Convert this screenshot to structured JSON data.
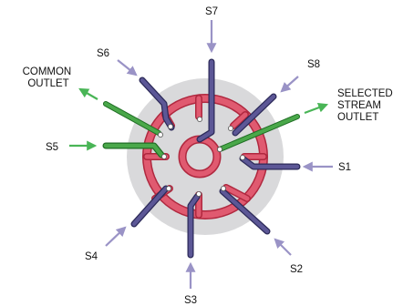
{
  "labels": {
    "s1": "S1",
    "s2": "S2",
    "s3": "S3",
    "s4": "S4",
    "s5": "S5",
    "s6": "S6",
    "s7": "S7",
    "s8": "S8",
    "common_outlet": [
      "COMMON",
      "OUTLET"
    ],
    "selected_outlet": [
      "SELECTED",
      "STREAM",
      "OUTLET"
    ]
  },
  "colors": {
    "disc": "#d9d9db",
    "channel": "#e05a70",
    "channel_edge": "#b0283f",
    "port": "#5c5796",
    "port_edge": "#2c2a59",
    "arrow": "#9a93c6",
    "outlet": "#4aa84a",
    "outlet_edge": "#1f6e24",
    "green_arrow": "#49b556"
  }
}
